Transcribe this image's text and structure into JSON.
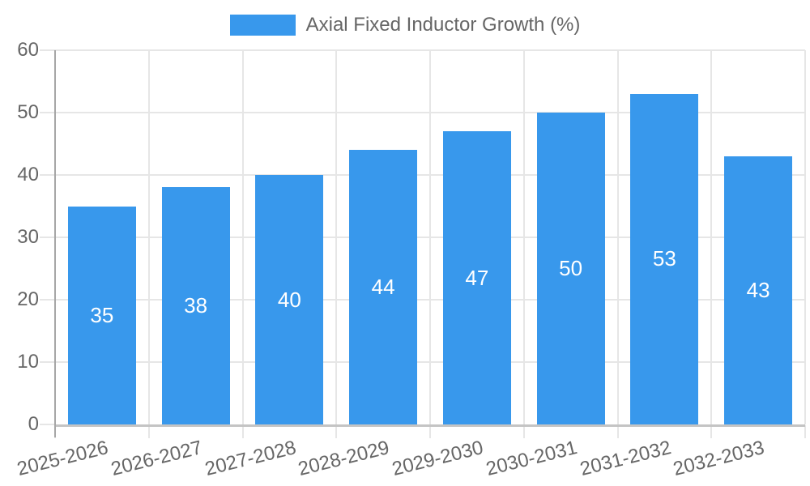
{
  "chart_data": {
    "type": "bar",
    "title": "",
    "legend_label": "Axial Fixed Inductor Growth (%)",
    "legend_position": "top",
    "categories": [
      "2025-2026",
      "2026-2027",
      "2027-2028",
      "2028-2029",
      "2029-2030",
      "2030-2031",
      "2031-2032",
      "2032-2033"
    ],
    "series": [
      {
        "name": "Axial Fixed Inductor Growth (%)",
        "values": [
          35,
          38,
          40,
          44,
          47,
          50,
          53,
          43
        ]
      }
    ],
    "bar_value_labels": [
      "35",
      "38",
      "40",
      "44",
      "47",
      "50",
      "53",
      "43"
    ],
    "xlabel": "",
    "ylabel": "",
    "ylim": [
      0,
      60
    ],
    "y_ticks": [
      0,
      10,
      20,
      30,
      40,
      50,
      60
    ],
    "grid": true,
    "x_label_rotation_deg": -14
  },
  "colors": {
    "bar": "#3898EC",
    "bar_label": "#FFFFFF",
    "axis_text": "#666666",
    "grid_line": "#E6E6E6",
    "y_axis_line": "#A6A6A6",
    "x_axis_line": "#C4C4C4",
    "background": "#FFFFFF"
  }
}
